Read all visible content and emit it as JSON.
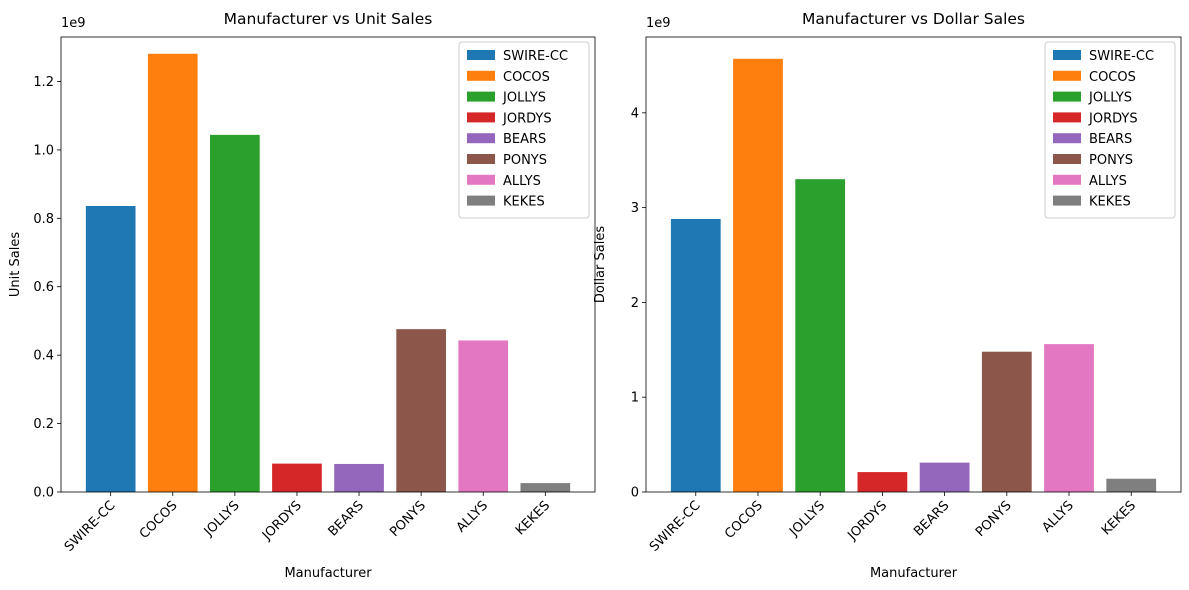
{
  "chart_data": [
    {
      "type": "bar",
      "title": "Manufacturer vs Unit Sales",
      "xlabel": "Manufacturer",
      "ylabel": "Unit Sales",
      "offset_label": "1e9",
      "categories": [
        "SWIRE-CC",
        "COCOS",
        "JOLLYS",
        "JORDYS",
        "BEARS",
        "PONYS",
        "ALLYS",
        "KEKES"
      ],
      "values": [
        0.836,
        1.281,
        1.044,
        0.083,
        0.082,
        0.476,
        0.443,
        0.026
      ],
      "ylim": [
        0,
        1.33
      ],
      "yticks": [
        0.0,
        0.2,
        0.4,
        0.6,
        0.8,
        1.0,
        1.2
      ],
      "ytick_labels": [
        "0.0",
        "0.2",
        "0.4",
        "0.6",
        "0.8",
        "1.0",
        "1.2"
      ],
      "grid": false,
      "legend_position": "top-right"
    },
    {
      "type": "bar",
      "title": "Manufacturer vs Dollar Sales",
      "xlabel": "Manufacturer",
      "ylabel": "Dollar Sales",
      "offset_label": "1e9",
      "categories": [
        "SWIRE-CC",
        "COCOS",
        "JOLLYS",
        "JORDYS",
        "BEARS",
        "PONYS",
        "ALLYS",
        "KEKES"
      ],
      "values": [
        2.88,
        4.57,
        3.3,
        0.21,
        0.31,
        1.48,
        1.56,
        0.14
      ],
      "ylim": [
        0,
        4.8
      ],
      "yticks": [
        0,
        1,
        2,
        3,
        4
      ],
      "ytick_labels": [
        "0",
        "1",
        "2",
        "3",
        "4"
      ],
      "grid": false,
      "legend_position": "top-right"
    }
  ],
  "colors": [
    "#1f77b4",
    "#ff7f0e",
    "#2ca02c",
    "#d62728",
    "#9467bd",
    "#8c564b",
    "#e377c2",
    "#7f7f7f"
  ]
}
